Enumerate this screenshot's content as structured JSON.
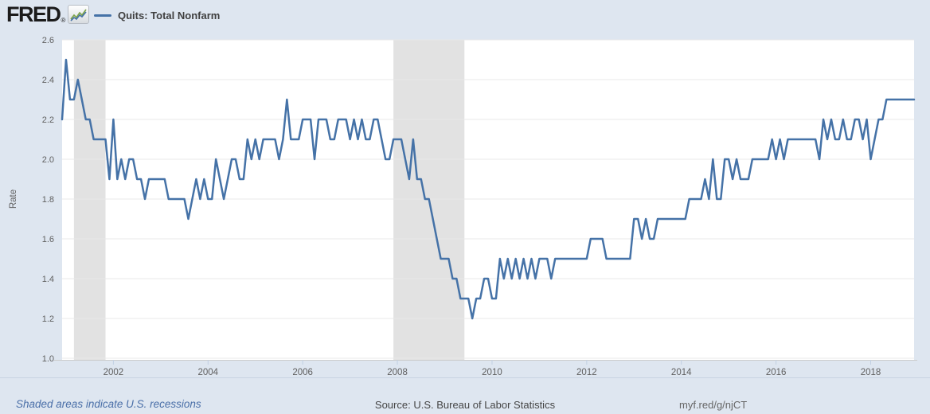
{
  "header": {
    "logo_text": "FRED",
    "logo_registered_mark": "®",
    "legend_label": "Quits: Total Nonfarm"
  },
  "footer": {
    "recession_note": "Shaded areas indicate U.S. recessions",
    "source": "Source: U.S. Bureau of Labor Statistics",
    "short_link": "myf.red/g/njCT"
  },
  "colors": {
    "line": "#4572a7",
    "page_background": "#dee6f0",
    "plot_background": "#ffffff",
    "gridline": "#e8e8e8",
    "recession_band": "#e2e2e2",
    "axis_line": "#cccccc",
    "tick_mark": "#c2d0e2",
    "axis_text": "#606060"
  },
  "chart_data": {
    "type": "line",
    "title": "Quits: Total Nonfarm",
    "ylabel": "Rate",
    "xlabel": "",
    "legend_position": "top-left header",
    "grid": "horizontal only",
    "frequency": "monthly",
    "start_month": "2000-12",
    "end_month": "2018-12",
    "ylim": [
      1.0,
      2.6
    ],
    "y_ticks": [
      "1.0",
      "1.2",
      "1.4",
      "1.6",
      "1.8",
      "2.0",
      "2.2",
      "2.4",
      "2.6"
    ],
    "x_tick_years": [
      2002,
      2004,
      2006,
      2008,
      2010,
      2012,
      2014,
      2016,
      2018
    ],
    "recessions": [
      {
        "start": "2001-03",
        "end": "2001-11"
      },
      {
        "start": "2007-12",
        "end": "2009-06"
      }
    ],
    "series": [
      {
        "name": "Quits: Total Nonfarm",
        "units": "Rate",
        "values": [
          2.2,
          2.5,
          2.3,
          2.3,
          2.4,
          2.3,
          2.2,
          2.2,
          2.1,
          2.1,
          2.1,
          2.1,
          1.9,
          2.2,
          1.9,
          2.0,
          1.9,
          2.0,
          2.0,
          1.9,
          1.9,
          1.8,
          1.9,
          1.9,
          1.9,
          1.9,
          1.9,
          1.8,
          1.8,
          1.8,
          1.8,
          1.8,
          1.7,
          1.8,
          1.9,
          1.8,
          1.9,
          1.8,
          1.8,
          2.0,
          1.9,
          1.8,
          1.9,
          2.0,
          2.0,
          1.9,
          1.9,
          2.1,
          2.0,
          2.1,
          2.0,
          2.1,
          2.1,
          2.1,
          2.1,
          2.0,
          2.1,
          2.3,
          2.1,
          2.1,
          2.1,
          2.2,
          2.2,
          2.2,
          2.0,
          2.2,
          2.2,
          2.2,
          2.1,
          2.1,
          2.2,
          2.2,
          2.2,
          2.1,
          2.2,
          2.1,
          2.2,
          2.1,
          2.1,
          2.2,
          2.2,
          2.1,
          2.0,
          2.0,
          2.1,
          2.1,
          2.1,
          2.0,
          1.9,
          2.1,
          1.9,
          1.9,
          1.8,
          1.8,
          1.7,
          1.6,
          1.5,
          1.5,
          1.5,
          1.4,
          1.4,
          1.3,
          1.3,
          1.3,
          1.2,
          1.3,
          1.3,
          1.4,
          1.4,
          1.3,
          1.3,
          1.5,
          1.4,
          1.5,
          1.4,
          1.5,
          1.4,
          1.5,
          1.4,
          1.5,
          1.4,
          1.5,
          1.5,
          1.5,
          1.4,
          1.5,
          1.5,
          1.5,
          1.5,
          1.5,
          1.5,
          1.5,
          1.5,
          1.5,
          1.6,
          1.6,
          1.6,
          1.6,
          1.5,
          1.5,
          1.5,
          1.5,
          1.5,
          1.5,
          1.5,
          1.7,
          1.7,
          1.6,
          1.7,
          1.6,
          1.6,
          1.7,
          1.7,
          1.7,
          1.7,
          1.7,
          1.7,
          1.7,
          1.7,
          1.8,
          1.8,
          1.8,
          1.8,
          1.9,
          1.8,
          2.0,
          1.8,
          1.8,
          2.0,
          2.0,
          1.9,
          2.0,
          1.9,
          1.9,
          1.9,
          2.0,
          2.0,
          2.0,
          2.0,
          2.0,
          2.1,
          2.0,
          2.1,
          2.0,
          2.1,
          2.1,
          2.1,
          2.1,
          2.1,
          2.1,
          2.1,
          2.1,
          2.0,
          2.2,
          2.1,
          2.2,
          2.1,
          2.1,
          2.2,
          2.1,
          2.1,
          2.2,
          2.2,
          2.1,
          2.2,
          2.0,
          2.1,
          2.2,
          2.2,
          2.3,
          2.3,
          2.3,
          2.3,
          2.3,
          2.3,
          2.3,
          2.3
        ]
      }
    ]
  }
}
